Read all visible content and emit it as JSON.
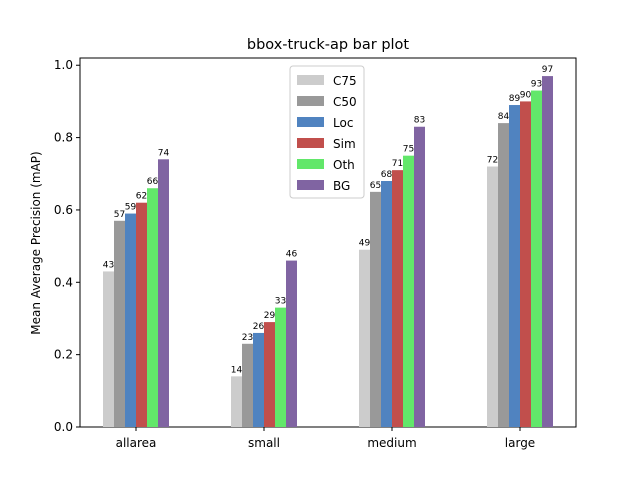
{
  "chart_data": {
    "type": "bar",
    "title": "bbox-truck-ap bar plot",
    "xlabel": "",
    "ylabel": "Mean Average Precision (mAP)",
    "ylim": [
      0,
      1.02
    ],
    "yticks": [
      0.0,
      0.2,
      0.4,
      0.6,
      0.8,
      1.0
    ],
    "ytick_labels": [
      "0.0",
      "0.2",
      "0.4",
      "0.6",
      "0.8",
      "1.0"
    ],
    "categories": [
      "allarea",
      "small",
      "medium",
      "large"
    ],
    "grid": false,
    "legend_position": "top-center",
    "series": [
      {
        "name": "C75",
        "color": "#cccccc",
        "values": [
          0.43,
          0.14,
          0.49,
          0.72
        ],
        "labels": [
          "43",
          "14",
          "49",
          "72"
        ]
      },
      {
        "name": "C50",
        "color": "#999999",
        "values": [
          0.57,
          0.23,
          0.65,
          0.84
        ],
        "labels": [
          "57",
          "23",
          "65",
          "84"
        ]
      },
      {
        "name": "Loc",
        "color": "#5083c0",
        "values": [
          0.59,
          0.26,
          0.68,
          0.89
        ],
        "labels": [
          "59",
          "26",
          "68",
          "89"
        ]
      },
      {
        "name": "Sim",
        "color": "#c14f4c",
        "values": [
          0.62,
          0.29,
          0.71,
          0.9
        ],
        "labels": [
          "62",
          "29",
          "71",
          "90"
        ]
      },
      {
        "name": "Oth",
        "color": "#62e76a",
        "values": [
          0.66,
          0.33,
          0.75,
          0.93
        ],
        "labels": [
          "66",
          "33",
          "75",
          "93"
        ]
      },
      {
        "name": "BG",
        "color": "#8064a2",
        "values": [
          0.74,
          0.46,
          0.83,
          0.97
        ],
        "labels": [
          "74",
          "46",
          "83",
          "97"
        ]
      }
    ]
  }
}
